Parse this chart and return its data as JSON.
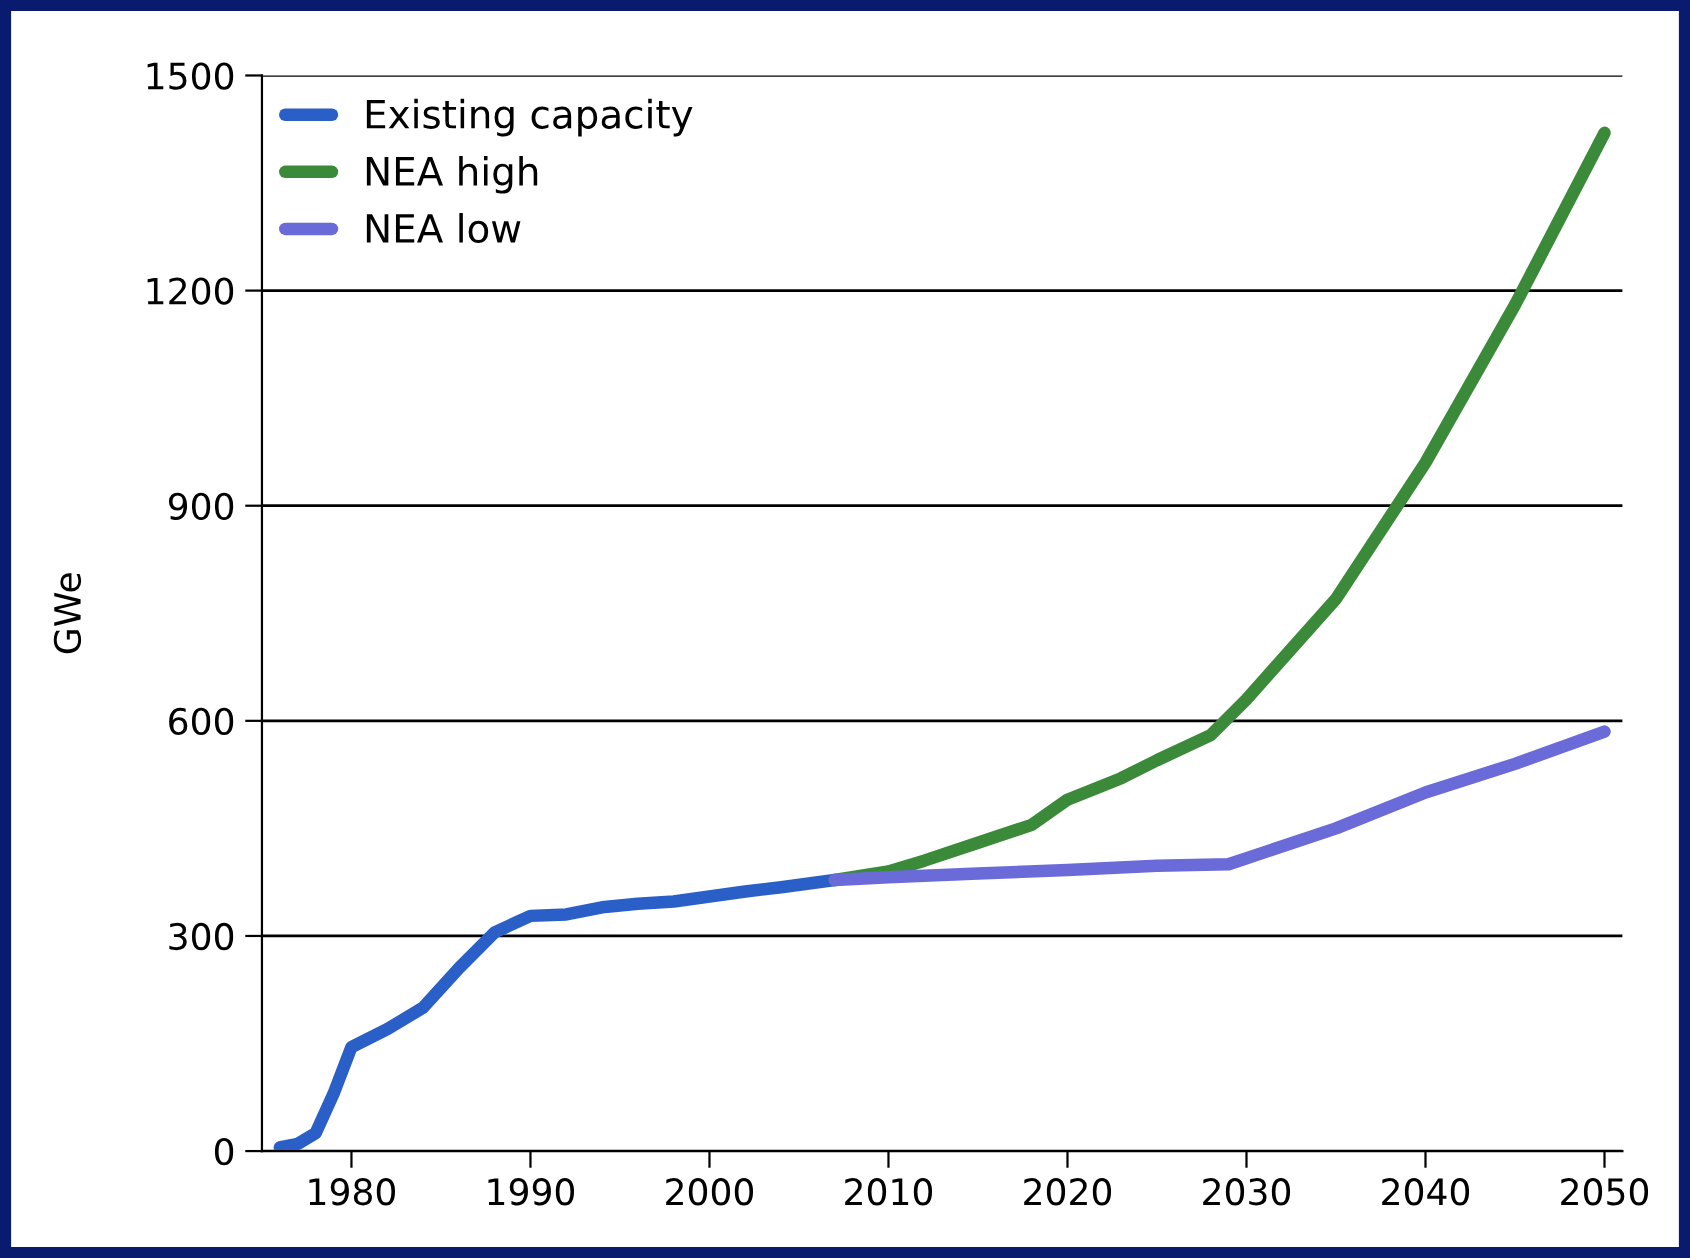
{
  "chart_data": {
    "type": "line",
    "ylabel": "GWe",
    "xlim": [
      1975,
      2051
    ],
    "xticks": [
      1980,
      1990,
      2000,
      2010,
      2020,
      2030,
      2040,
      2050
    ],
    "ylim": [
      0,
      1500
    ],
    "yticks": [
      0,
      300,
      600,
      900,
      1200,
      1500
    ],
    "grid": "y",
    "legend": "top left",
    "line_style": "solid",
    "marker": "none",
    "series": [
      {
        "name": "Existing capacity",
        "color": "#2a5fc8",
        "x": [
          1976,
          1977,
          1978,
          1979,
          1980,
          1982,
          1984,
          1986,
          1988,
          1990,
          1992,
          1994,
          1996,
          1998,
          2000,
          2002,
          2004,
          2007
        ],
        "values": [
          5,
          10,
          25,
          80,
          145,
          170,
          200,
          255,
          305,
          328,
          330,
          340,
          345,
          348,
          355,
          362,
          368,
          378
        ]
      },
      {
        "name": "NEA high",
        "color": "#3a8a3a",
        "x": [
          2007,
          2010,
          2012,
          2015,
          2018,
          2020,
          2023,
          2025,
          2028,
          2030,
          2035,
          2040,
          2045,
          2050
        ],
        "values": [
          378,
          390,
          405,
          430,
          455,
          490,
          520,
          545,
          580,
          630,
          770,
          960,
          1180,
          1420
        ]
      },
      {
        "name": "NEA low",
        "color": "#6a6ad8",
        "x": [
          2007,
          2010,
          2015,
          2020,
          2025,
          2029,
          2035,
          2040,
          2045,
          2050
        ],
        "values": [
          378,
          382,
          387,
          392,
          398,
          400,
          450,
          500,
          540,
          585
        ]
      }
    ]
  }
}
